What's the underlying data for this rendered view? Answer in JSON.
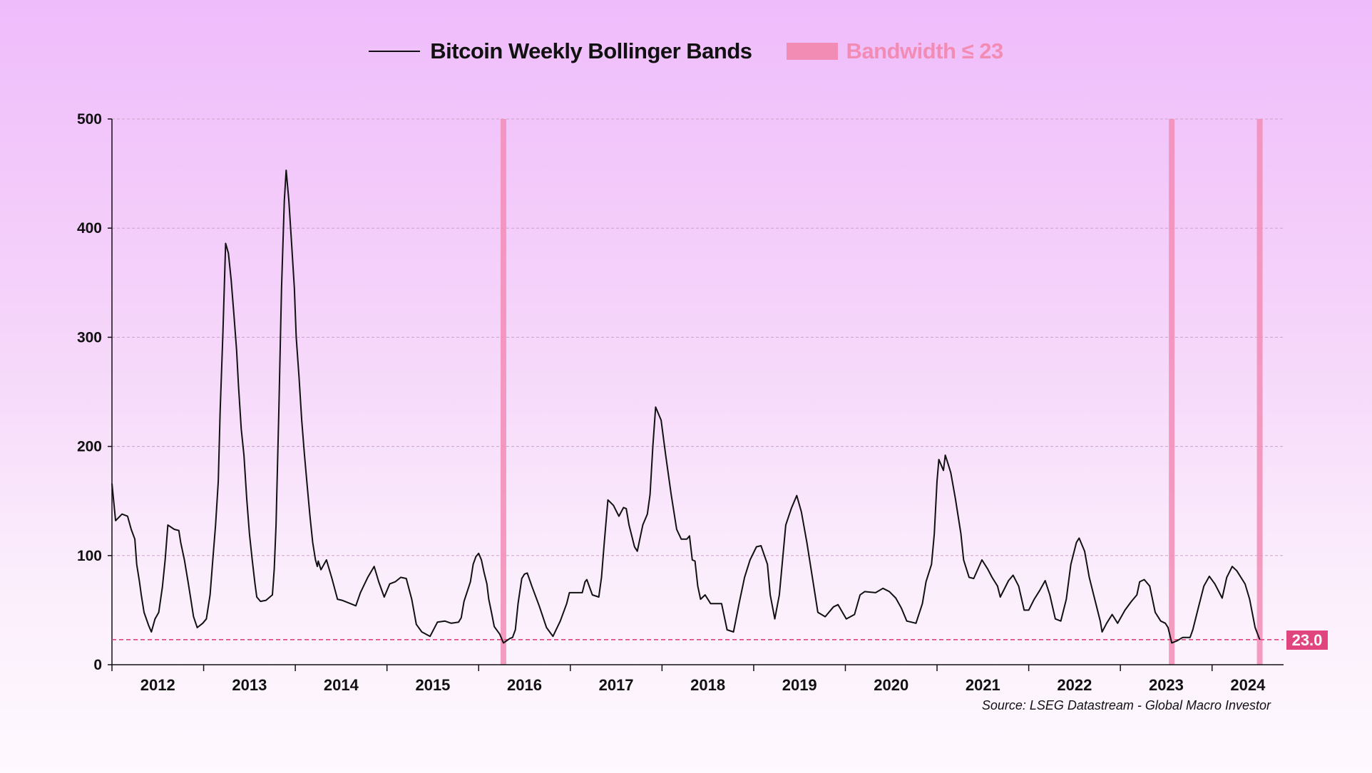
{
  "legend": {
    "series_label": "Bitcoin Weekly Bollinger Bands",
    "band_label": "Bandwidth ≤ 23"
  },
  "source": "Source: LSEG Datastream - Global Macro Investor",
  "colors": {
    "line": "#111111",
    "band": "#f28cb5",
    "threshold": "#e0457e",
    "grid": "#c9a3c9"
  },
  "chart_data": {
    "type": "line",
    "title": "",
    "xlabel": "",
    "ylabel": "",
    "xlim": [
      2012.0,
      2024.78
    ],
    "ylim": [
      0,
      500
    ],
    "yticks": [
      0,
      100,
      200,
      300,
      400,
      500
    ],
    "ytick_labels": [
      "0",
      "100",
      "200",
      "300",
      "400",
      "500"
    ],
    "xtick_labels": [
      "2012",
      "2013",
      "2014",
      "2015",
      "2016",
      "2017",
      "2018",
      "2019",
      "2020",
      "2021",
      "2022",
      "2023",
      "2024"
    ],
    "grid": "horizontal dashed",
    "legend_position": "top-center",
    "threshold": {
      "value": 23,
      "label": "23.0"
    },
    "bandwidth_signal_dates": [
      2016.27,
      2023.56,
      2024.52
    ],
    "series": [
      {
        "name": "Bitcoin Weekly Bollinger Bands",
        "points": [
          [
            2012.0,
            166
          ],
          [
            2012.04,
            132
          ],
          [
            2012.11,
            138
          ],
          [
            2012.17,
            136
          ],
          [
            2012.21,
            124
          ],
          [
            2012.25,
            115
          ],
          [
            2012.27,
            92
          ],
          [
            2012.3,
            76
          ],
          [
            2012.32,
            64
          ],
          [
            2012.35,
            48
          ],
          [
            2012.4,
            36
          ],
          [
            2012.43,
            30
          ],
          [
            2012.47,
            42
          ],
          [
            2012.51,
            48
          ],
          [
            2012.55,
            71
          ],
          [
            2012.58,
            96
          ],
          [
            2012.61,
            128
          ],
          [
            2012.68,
            124
          ],
          [
            2012.73,
            123
          ],
          [
            2012.75,
            112
          ],
          [
            2012.79,
            96
          ],
          [
            2012.83,
            76
          ],
          [
            2012.86,
            60
          ],
          [
            2012.89,
            44
          ],
          [
            2012.93,
            34
          ],
          [
            2012.99,
            38
          ],
          [
            2013.03,
            42
          ],
          [
            2013.07,
            64
          ],
          [
            2013.1,
            96
          ],
          [
            2013.13,
            128
          ],
          [
            2013.16,
            168
          ],
          [
            2013.18,
            232
          ],
          [
            2013.21,
            304
          ],
          [
            2013.24,
            386
          ],
          [
            2013.27,
            377
          ],
          [
            2013.3,
            353
          ],
          [
            2013.33,
            321
          ],
          [
            2013.36,
            288
          ],
          [
            2013.38,
            256
          ],
          [
            2013.41,
            216
          ],
          [
            2013.44,
            192
          ],
          [
            2013.47,
            152
          ],
          [
            2013.5,
            120
          ],
          [
            2013.53,
            96
          ],
          [
            2013.56,
            74
          ],
          [
            2013.58,
            62
          ],
          [
            2013.62,
            58
          ],
          [
            2013.68,
            59
          ],
          [
            2013.75,
            64
          ],
          [
            2013.77,
            88
          ],
          [
            2013.79,
            128
          ],
          [
            2013.82,
            232
          ],
          [
            2013.85,
            345
          ],
          [
            2013.88,
            425
          ],
          [
            2013.9,
            453
          ],
          [
            2013.93,
            425
          ],
          [
            2013.96,
            385
          ],
          [
            2013.99,
            345
          ],
          [
            2014.01,
            300
          ],
          [
            2014.04,
            264
          ],
          [
            2014.07,
            224
          ],
          [
            2014.1,
            192
          ],
          [
            2014.13,
            164
          ],
          [
            2014.16,
            136
          ],
          [
            2014.19,
            112
          ],
          [
            2014.22,
            96
          ],
          [
            2014.24,
            90
          ],
          [
            2014.25,
            95
          ],
          [
            2014.28,
            87
          ],
          [
            2014.34,
            96
          ],
          [
            2014.4,
            79
          ],
          [
            2014.46,
            60
          ],
          [
            2014.51,
            59
          ],
          [
            2014.6,
            56
          ],
          [
            2014.66,
            54
          ],
          [
            2014.71,
            66
          ],
          [
            2014.79,
            80
          ],
          [
            2014.86,
            90
          ],
          [
            2014.91,
            76
          ],
          [
            2014.97,
            62
          ],
          [
            2015.03,
            74
          ],
          [
            2015.09,
            76
          ],
          [
            2015.15,
            80
          ],
          [
            2015.21,
            79
          ],
          [
            2015.27,
            60
          ],
          [
            2015.32,
            37
          ],
          [
            2015.38,
            30
          ],
          [
            2015.47,
            26
          ],
          [
            2015.55,
            39
          ],
          [
            2015.63,
            40
          ],
          [
            2015.7,
            38
          ],
          [
            2015.78,
            39
          ],
          [
            2015.81,
            43
          ],
          [
            2015.84,
            58
          ],
          [
            2015.91,
            76
          ],
          [
            2015.94,
            92
          ],
          [
            2015.97,
            99
          ],
          [
            2016.0,
            102
          ],
          [
            2016.03,
            96
          ],
          [
            2016.06,
            84
          ],
          [
            2016.09,
            74
          ],
          [
            2016.11,
            60
          ],
          [
            2016.14,
            48
          ],
          [
            2016.17,
            35
          ],
          [
            2016.23,
            28
          ],
          [
            2016.27,
            20
          ],
          [
            2016.34,
            24
          ],
          [
            2016.37,
            25
          ],
          [
            2016.4,
            32
          ],
          [
            2016.43,
            56
          ],
          [
            2016.47,
            79
          ],
          [
            2016.5,
            83
          ],
          [
            2016.53,
            84
          ],
          [
            2016.58,
            72
          ],
          [
            2016.66,
            54
          ],
          [
            2016.74,
            34
          ],
          [
            2016.81,
            26
          ],
          [
            2016.89,
            40
          ],
          [
            2016.96,
            56
          ],
          [
            2016.99,
            66
          ],
          [
            2017.05,
            66
          ],
          [
            2017.13,
            66
          ],
          [
            2017.16,
            76
          ],
          [
            2017.18,
            78
          ],
          [
            2017.24,
            64
          ],
          [
            2017.31,
            62
          ],
          [
            2017.34,
            80
          ],
          [
            2017.37,
            112
          ],
          [
            2017.41,
            151
          ],
          [
            2017.47,
            146
          ],
          [
            2017.53,
            136
          ],
          [
            2017.58,
            144
          ],
          [
            2017.61,
            143
          ],
          [
            2017.64,
            128
          ],
          [
            2017.7,
            108
          ],
          [
            2017.73,
            104
          ],
          [
            2017.79,
            128
          ],
          [
            2017.84,
            138
          ],
          [
            2017.87,
            156
          ],
          [
            2017.9,
            200
          ],
          [
            2017.93,
            236
          ],
          [
            2017.99,
            224
          ],
          [
            2018.04,
            192
          ],
          [
            2018.1,
            156
          ],
          [
            2018.16,
            124
          ],
          [
            2018.21,
            115
          ],
          [
            2018.27,
            115
          ],
          [
            2018.3,
            118
          ],
          [
            2018.33,
            96
          ],
          [
            2018.36,
            95
          ],
          [
            2018.39,
            72
          ],
          [
            2018.42,
            60
          ],
          [
            2018.47,
            64
          ],
          [
            2018.53,
            56
          ],
          [
            2018.59,
            56
          ],
          [
            2018.65,
            56
          ],
          [
            2018.71,
            32
          ],
          [
            2018.78,
            30
          ],
          [
            2018.84,
            56
          ],
          [
            2018.9,
            80
          ],
          [
            2018.96,
            96
          ],
          [
            2019.03,
            108
          ],
          [
            2019.08,
            109
          ],
          [
            2019.15,
            92
          ],
          [
            2019.18,
            64
          ],
          [
            2019.23,
            42
          ],
          [
            2019.28,
            64
          ],
          [
            2019.35,
            128
          ],
          [
            2019.41,
            143
          ],
          [
            2019.47,
            155
          ],
          [
            2019.52,
            140
          ],
          [
            2019.58,
            112
          ],
          [
            2019.64,
            80
          ],
          [
            2019.7,
            48
          ],
          [
            2019.78,
            44
          ],
          [
            2019.87,
            53
          ],
          [
            2019.92,
            55
          ],
          [
            2020.01,
            42
          ],
          [
            2020.1,
            46
          ],
          [
            2020.16,
            64
          ],
          [
            2020.21,
            67
          ],
          [
            2020.33,
            66
          ],
          [
            2020.41,
            70
          ],
          [
            2020.48,
            67
          ],
          [
            2020.55,
            61
          ],
          [
            2020.61,
            52
          ],
          [
            2020.67,
            40
          ],
          [
            2020.77,
            38
          ],
          [
            2020.84,
            56
          ],
          [
            2020.88,
            76
          ],
          [
            2020.94,
            92
          ],
          [
            2020.97,
            120
          ],
          [
            2021.0,
            168
          ],
          [
            2021.02,
            188
          ],
          [
            2021.07,
            178
          ],
          [
            2021.09,
            192
          ],
          [
            2021.12,
            184
          ],
          [
            2021.15,
            176
          ],
          [
            2021.2,
            152
          ],
          [
            2021.26,
            120
          ],
          [
            2021.29,
            96
          ],
          [
            2021.35,
            80
          ],
          [
            2021.4,
            79
          ],
          [
            2021.49,
            96
          ],
          [
            2021.55,
            88
          ],
          [
            2021.6,
            80
          ],
          [
            2021.66,
            72
          ],
          [
            2021.69,
            62
          ],
          [
            2021.78,
            77
          ],
          [
            2021.83,
            82
          ],
          [
            2021.89,
            72
          ],
          [
            2021.95,
            50
          ],
          [
            2022.0,
            50
          ],
          [
            2022.06,
            60
          ],
          [
            2022.12,
            68
          ],
          [
            2022.18,
            77
          ],
          [
            2022.23,
            64
          ],
          [
            2022.29,
            42
          ],
          [
            2022.35,
            40
          ],
          [
            2022.41,
            60
          ],
          [
            2022.46,
            92
          ],
          [
            2022.52,
            112
          ],
          [
            2022.55,
            116
          ],
          [
            2022.61,
            104
          ],
          [
            2022.66,
            80
          ],
          [
            2022.72,
            60
          ],
          [
            2022.78,
            40
          ],
          [
            2022.8,
            30
          ],
          [
            2022.85,
            38
          ],
          [
            2022.91,
            46
          ],
          [
            2022.97,
            38
          ],
          [
            2023.05,
            50
          ],
          [
            2023.12,
            58
          ],
          [
            2023.18,
            64
          ],
          [
            2023.21,
            76
          ],
          [
            2023.26,
            78
          ],
          [
            2023.32,
            72
          ],
          [
            2023.38,
            48
          ],
          [
            2023.44,
            40
          ],
          [
            2023.49,
            38
          ],
          [
            2023.52,
            34
          ],
          [
            2023.56,
            20
          ],
          [
            2023.62,
            22
          ],
          [
            2023.68,
            25
          ],
          [
            2023.76,
            25
          ],
          [
            2023.79,
            32
          ],
          [
            2023.85,
            52
          ],
          [
            2023.91,
            72
          ],
          [
            2023.97,
            81
          ],
          [
            2024.03,
            74
          ],
          [
            2024.11,
            61
          ],
          [
            2024.16,
            80
          ],
          [
            2024.22,
            90
          ],
          [
            2024.27,
            86
          ],
          [
            2024.36,
            74
          ],
          [
            2024.41,
            60
          ],
          [
            2024.47,
            34
          ],
          [
            2024.52,
            23
          ]
        ]
      }
    ]
  }
}
